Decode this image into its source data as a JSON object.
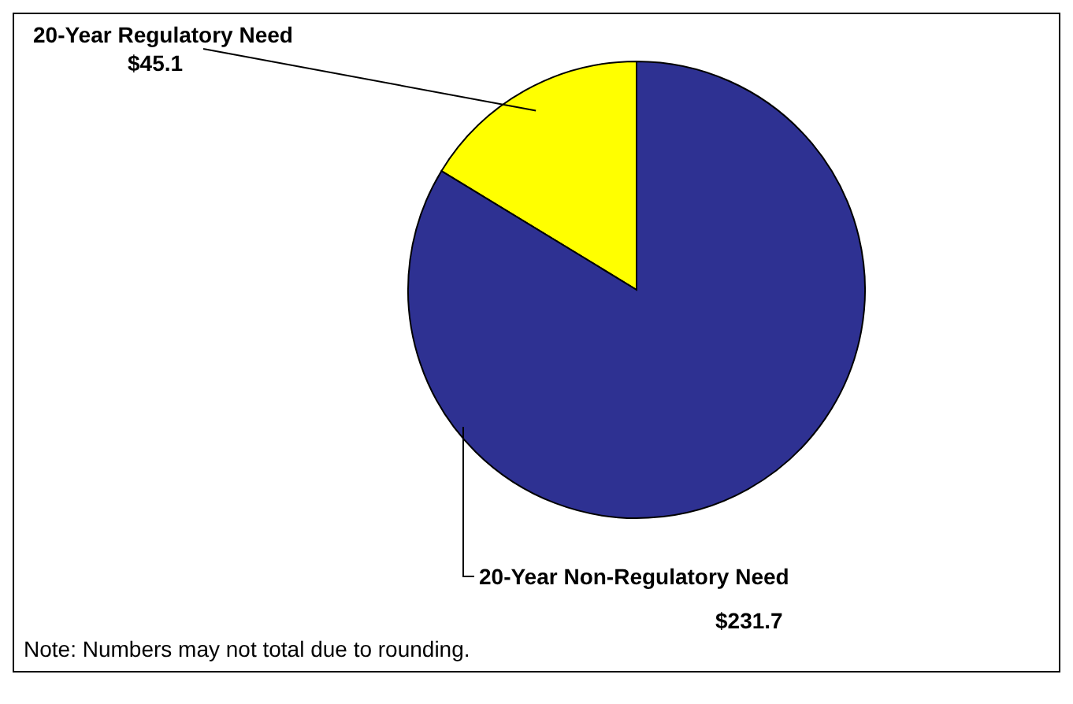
{
  "chart_data": {
    "type": "pie",
    "categories": [
      "20-Year Regulatory Need",
      "20-Year Non-Regulatory Need"
    ],
    "values": [
      45.1,
      231.7
    ],
    "colors": [
      "#ffff00",
      "#2e3192"
    ],
    "value_labels": [
      "$45.1",
      "$231.7"
    ],
    "annotations": [
      "Note: Numbers may not total due to rounding."
    ]
  }
}
